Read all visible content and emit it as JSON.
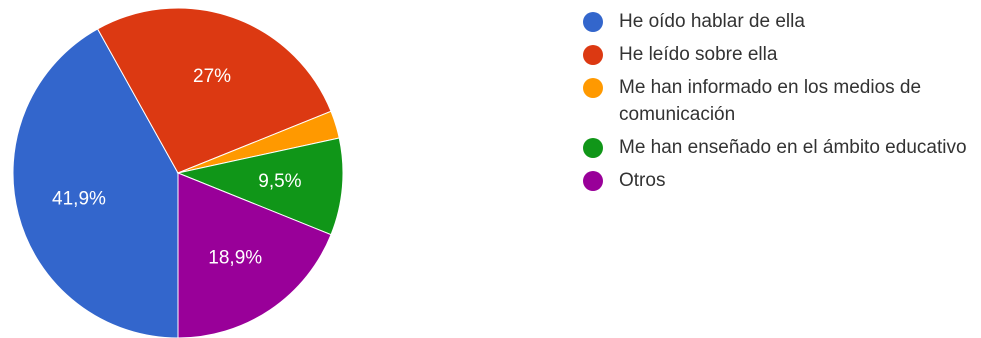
{
  "chart_data": {
    "type": "pie",
    "title": "",
    "unit": "%",
    "legend_position": "right",
    "series": [
      {
        "name": "He oído hablar de ella",
        "value": 41.9,
        "label": "41,9%",
        "color": "#3366cc"
      },
      {
        "name": "He leído sobre ella",
        "value": 27.0,
        "label": "27%",
        "color": "#dc3912"
      },
      {
        "name": "Me han informado en los medios de comunicación",
        "value": 2.7,
        "label": "",
        "color": "#ff9900"
      },
      {
        "name": "Me han enseñado en el ámbito educativo",
        "value": 9.5,
        "label": "9,5%",
        "color": "#109618"
      },
      {
        "name": "Otros",
        "value": 18.9,
        "label": "18,9%",
        "color": "#990099"
      }
    ]
  }
}
